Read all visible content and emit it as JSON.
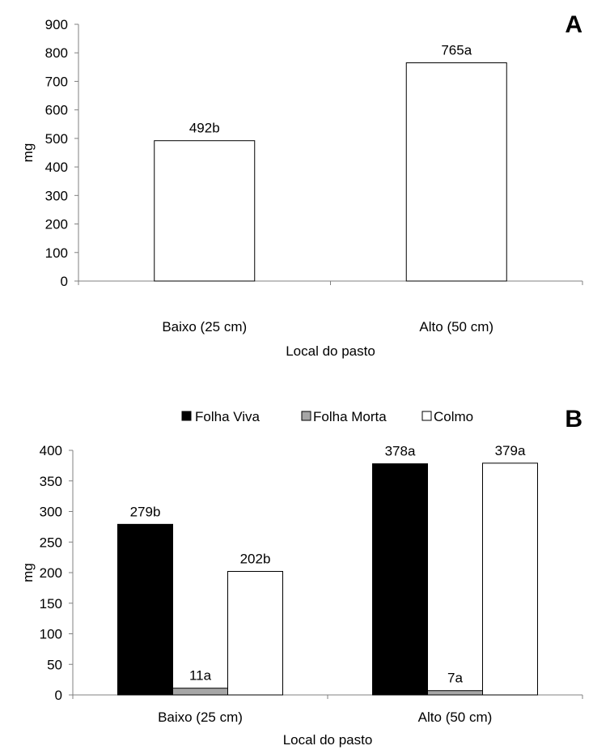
{
  "chart_data": [
    {
      "type": "bar",
      "panel_letter": "A",
      "categories": [
        "Baixo (25 cm)",
        "Alto (50 cm)"
      ],
      "series": [
        {
          "values": [
            492,
            765
          ],
          "labels": [
            "492b",
            "765a"
          ],
          "color": "#ffffff"
        }
      ],
      "xlabel": "Local do pasto",
      "ylabel": "mg",
      "ylim": [
        0,
        900
      ],
      "yticks": [
        0,
        100,
        200,
        300,
        400,
        500,
        600,
        700,
        800,
        900
      ],
      "grid": false
    },
    {
      "type": "bar",
      "panel_letter": "B",
      "categories": [
        "Baixo (25 cm)",
        "Alto (50 cm)"
      ],
      "series": [
        {
          "name": "Folha Viva",
          "values": [
            279,
            378
          ],
          "labels": [
            "279b",
            "378a"
          ],
          "color": "#000000"
        },
        {
          "name": "Folha Morta",
          "values": [
            11,
            7
          ],
          "labels": [
            "11a",
            "7a"
          ],
          "color": "#a6a6a6"
        },
        {
          "name": "Colmo",
          "values": [
            202,
            379
          ],
          "labels": [
            "202b",
            "379a"
          ],
          "color": "#ffffff"
        }
      ],
      "xlabel": "Local do pasto",
      "ylabel": "mg",
      "ylim": [
        0,
        400
      ],
      "yticks": [
        0,
        50,
        100,
        150,
        200,
        250,
        300,
        350,
        400
      ],
      "legend": "top",
      "grid": false
    }
  ]
}
